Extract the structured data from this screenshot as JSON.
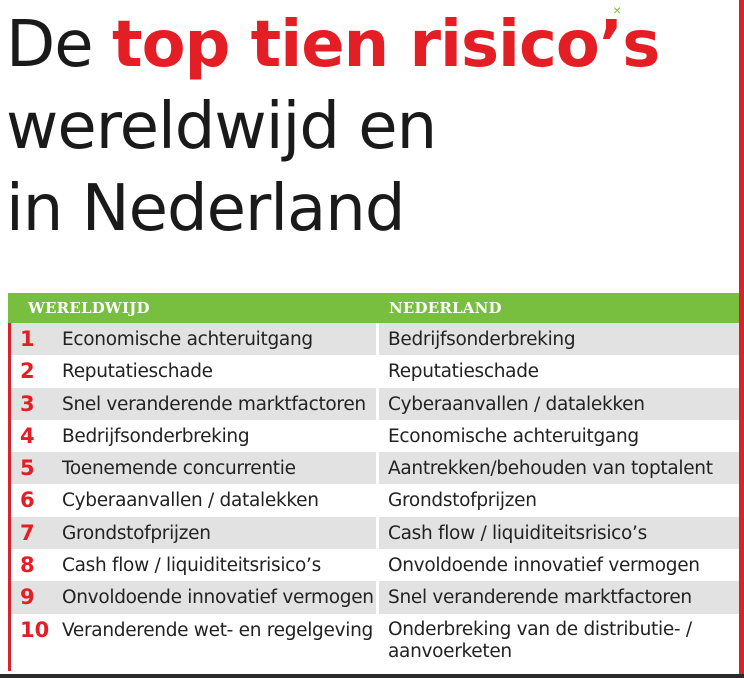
{
  "title": {
    "part1": "De ",
    "highlight": "top tien risico’s",
    "line2": "wereldwijd en",
    "line3": "in Nederland"
  },
  "close_mark": "×",
  "colors": {
    "accent_red": "#e31e24",
    "header_green": "#78bf3f",
    "row_shade": "#e2e2e2"
  },
  "table": {
    "headers": {
      "world": "WERELDWIJD",
      "nl": "NEDERLAND"
    },
    "rows": [
      {
        "num": "1",
        "world": "Economische achteruitgang",
        "nl": "Bedrijfsonderbreking"
      },
      {
        "num": "2",
        "world": "Reputatieschade",
        "nl": "Reputatieschade"
      },
      {
        "num": "3",
        "world": "Snel veranderende marktfactoren",
        "nl": "Cyberaanvallen / datalekken"
      },
      {
        "num": "4",
        "world": "Bedrijfsonderbreking",
        "nl": "Economische achteruitgang"
      },
      {
        "num": "5",
        "world": "Toenemende concurrentie",
        "nl": "Aantrekken/behouden van toptalent"
      },
      {
        "num": "6",
        "world": "Cyberaanvallen / datalekken",
        "nl": "Grondstofprijzen"
      },
      {
        "num": "7",
        "world": "Grondstofprijzen",
        "nl": "Cash flow / liquiditeitsrisico’s"
      },
      {
        "num": "8",
        "world": "Cash flow / liquiditeitsrisico’s",
        "nl": "Onvoldoende innovatief vermogen"
      },
      {
        "num": "9",
        "world": "Onvoldoende innovatief vermogen",
        "nl": "Snel veranderende marktfactoren"
      },
      {
        "num": "10",
        "world": "Veranderende wet- en regelgeving",
        "nl": "Onderbreking van de distributie- / aanvoerketen"
      }
    ]
  }
}
